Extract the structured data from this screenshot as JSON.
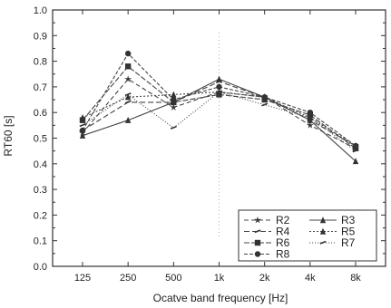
{
  "chart_data": {
    "type": "line",
    "xlabel": "Ocatve band frequency [Hz]",
    "ylabel": "RT60 [s]",
    "categories": [
      "125",
      "250",
      "500",
      "1k",
      "2k",
      "4k",
      "8k"
    ],
    "ylim": [
      0.0,
      1.0
    ],
    "yticks": [
      "0.0",
      "0.1",
      "0.2",
      "0.3",
      "0.4",
      "0.5",
      "0.6",
      "0.7",
      "0.8",
      "0.9",
      "1.0"
    ],
    "grid": false,
    "legend_position": "bottom-right",
    "series": [
      {
        "name": "R2",
        "values": [
          0.52,
          0.73,
          0.62,
          0.68,
          0.66,
          0.55,
          0.46
        ],
        "marker": "star",
        "dash": "5,3"
      },
      {
        "name": "R3",
        "values": [
          0.51,
          0.57,
          0.64,
          0.73,
          0.66,
          0.57,
          0.41
        ],
        "marker": "triangle",
        "dash": ""
      },
      {
        "name": "R4",
        "values": [
          0.53,
          0.64,
          0.64,
          0.72,
          0.66,
          0.57,
          0.47
        ],
        "marker": "tick",
        "dash": "6,3"
      },
      {
        "name": "R5",
        "values": [
          0.58,
          0.66,
          0.67,
          0.68,
          0.66,
          0.58,
          0.47
        ],
        "marker": "triangle",
        "dash": "2,2"
      },
      {
        "name": "R6",
        "values": [
          0.57,
          0.78,
          0.64,
          0.67,
          0.65,
          0.59,
          0.46
        ],
        "marker": "square",
        "dash": "6,2"
      },
      {
        "name": "R7",
        "values": [
          0.55,
          0.67,
          0.54,
          0.68,
          0.63,
          0.58,
          0.45
        ],
        "marker": "tick",
        "dash": "1,2"
      },
      {
        "name": "R8",
        "values": [
          0.53,
          0.83,
          0.65,
          0.7,
          0.66,
          0.6,
          0.47
        ],
        "marker": "circle",
        "dash": "4,2"
      }
    ]
  }
}
